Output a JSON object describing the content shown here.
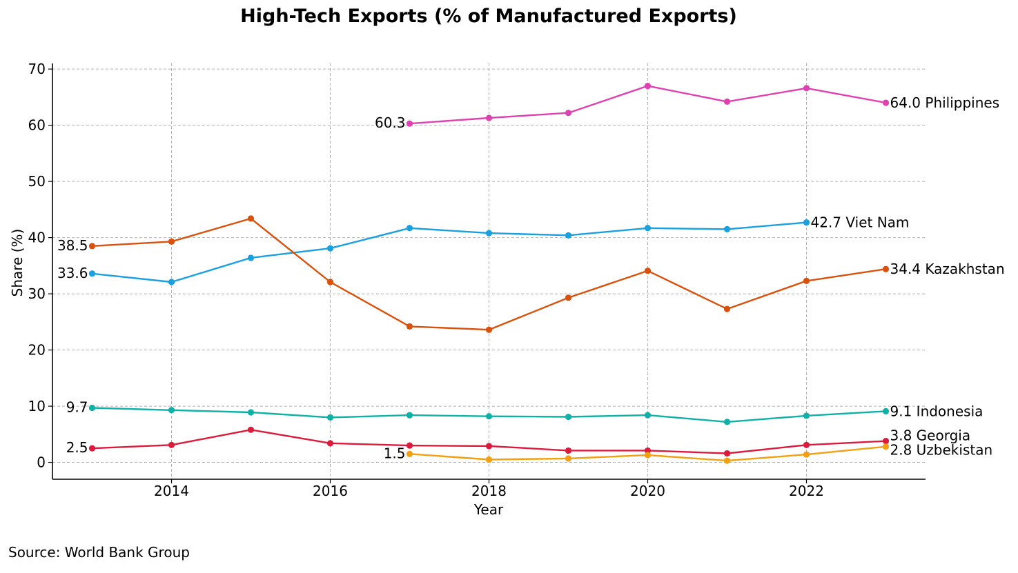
{
  "source": "Source: World Bank Group",
  "chart_data": {
    "type": "line",
    "title": "High-Tech Exports (% of Manufactured Exports)",
    "xlabel": "Year",
    "ylabel": "Share (%)",
    "xlim": [
      2012.5,
      2023.5
    ],
    "ylim": [
      -3,
      71
    ],
    "xticks": [
      2014,
      2016,
      2018,
      2020,
      2022
    ],
    "yticks": [
      0,
      10,
      20,
      30,
      40,
      50,
      60,
      70
    ],
    "grid": true,
    "legend": "none (series labelled at line ends)",
    "series": [
      {
        "name": "Philippines",
        "color": "#e040b0",
        "x": [
          2017,
          2018,
          2019,
          2020,
          2021,
          2022,
          2023
        ],
        "values": [
          60.3,
          61.3,
          62.2,
          67.0,
          64.2,
          66.6,
          64.0
        ],
        "start_label": "60.3",
        "end_label": "64.0 Philippines"
      },
      {
        "name": "Viet Nam",
        "color": "#1aa0e0",
        "x": [
          2013,
          2014,
          2015,
          2016,
          2017,
          2018,
          2019,
          2020,
          2021,
          2022
        ],
        "values": [
          33.6,
          32.1,
          36.4,
          38.1,
          41.7,
          40.8,
          40.4,
          41.7,
          41.5,
          42.7
        ],
        "start_label": "33.6",
        "end_label": "42.7 Viet Nam"
      },
      {
        "name": "Kazakhstan",
        "color": "#d9510c",
        "x": [
          2013,
          2014,
          2015,
          2016,
          2017,
          2018,
          2019,
          2020,
          2021,
          2022,
          2023
        ],
        "values": [
          38.5,
          39.3,
          43.4,
          32.1,
          24.2,
          23.6,
          29.3,
          34.1,
          27.3,
          32.3,
          34.4
        ],
        "start_label": "38.5",
        "end_label": "34.4 Kazakhstan"
      },
      {
        "name": "Indonesia",
        "color": "#0fb0a5",
        "x": [
          2013,
          2014,
          2015,
          2016,
          2017,
          2018,
          2019,
          2020,
          2021,
          2022,
          2023
        ],
        "values": [
          9.7,
          9.3,
          8.9,
          8.0,
          8.4,
          8.2,
          8.1,
          8.4,
          7.2,
          8.3,
          9.1
        ],
        "start_label": "9.7",
        "end_label": "9.1 Indonesia"
      },
      {
        "name": "Georgia",
        "color": "#dc1a3c",
        "x": [
          2013,
          2014,
          2015,
          2016,
          2017,
          2018,
          2019,
          2020,
          2021,
          2022,
          2023
        ],
        "values": [
          2.5,
          3.1,
          5.8,
          3.4,
          3.0,
          2.9,
          2.1,
          2.1,
          1.6,
          3.1,
          3.8
        ],
        "start_label": "2.5",
        "end_label": "3.8 Georgia"
      },
      {
        "name": "Uzbekistan",
        "color": "#f2a010",
        "x": [
          2017,
          2018,
          2019,
          2020,
          2021,
          2022,
          2023
        ],
        "values": [
          1.5,
          0.5,
          0.7,
          1.3,
          0.3,
          1.4,
          2.8
        ],
        "start_label": "1.5",
        "end_label": "2.8 Uzbekistan"
      }
    ]
  }
}
